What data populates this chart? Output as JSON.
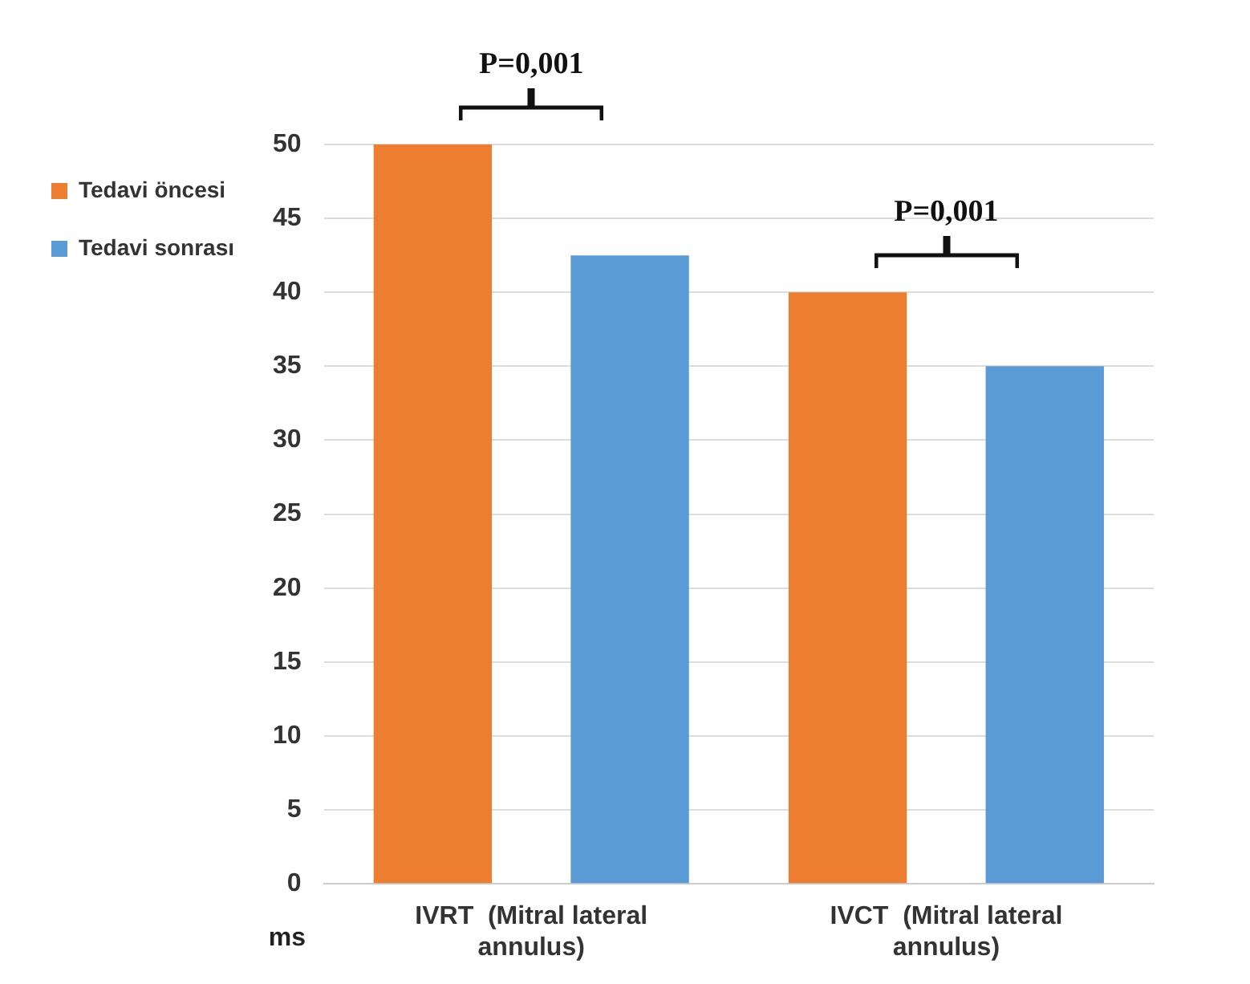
{
  "chart_data": {
    "type": "bar",
    "categories": [
      "IVRT  (Mitral lateral annulus)",
      "IVCT  (Mitral lateral annulus)"
    ],
    "series": [
      {
        "name": "Tedavi öncesi",
        "color": "#ed7d31",
        "values": [
          50,
          40
        ]
      },
      {
        "name": "Tedavi sonrası",
        "color": "#5b9bd5",
        "values": [
          42.5,
          35
        ]
      }
    ],
    "ylabel": "ms",
    "ylim": [
      0,
      50
    ],
    "yticks": [
      0,
      5,
      10,
      15,
      20,
      25,
      30,
      35,
      40,
      45,
      50
    ],
    "grid": "y",
    "legend": "top left",
    "annotations": [
      "P=0,001",
      "P=0,001"
    ]
  }
}
